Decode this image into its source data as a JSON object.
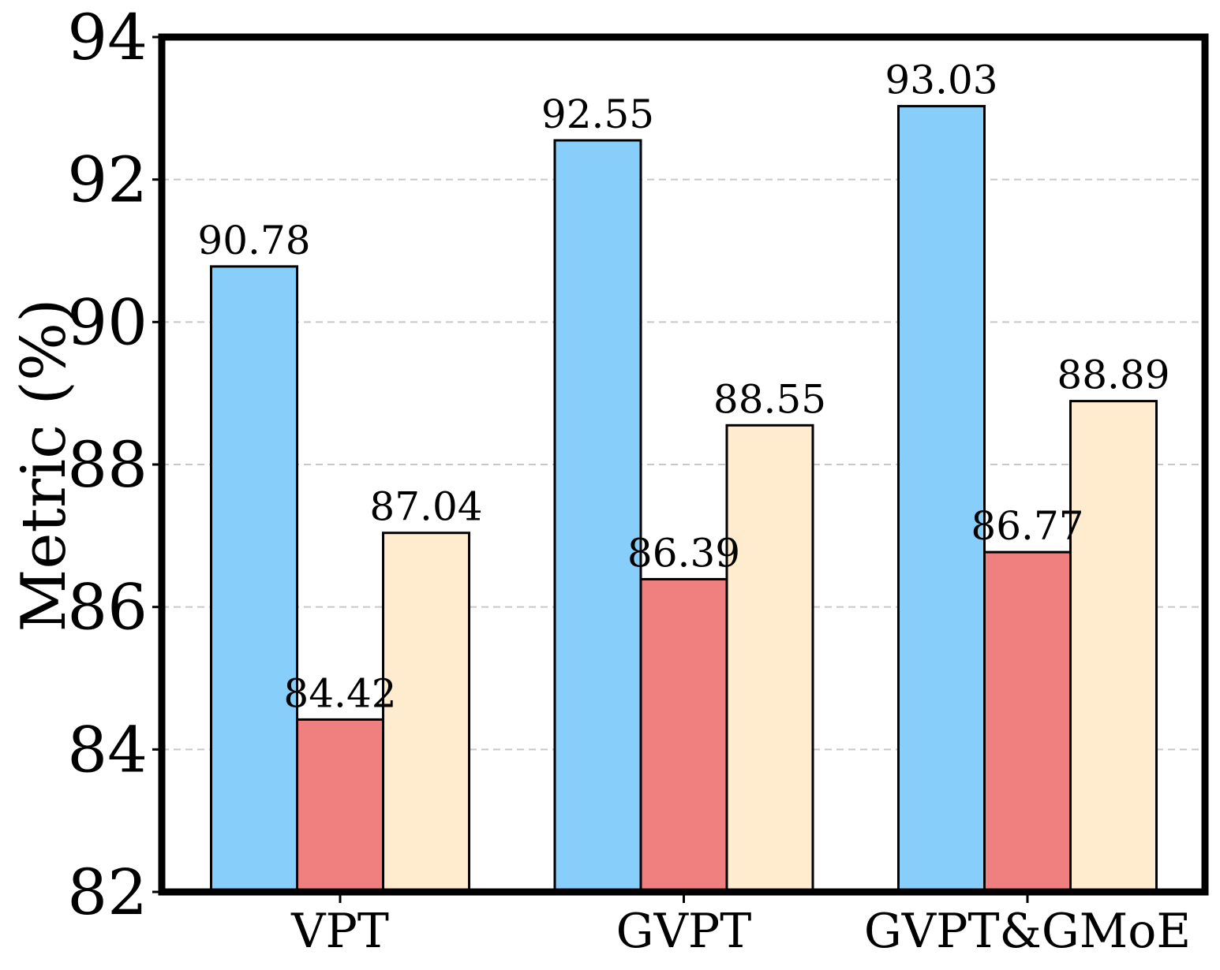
{
  "chart_data": {
    "type": "bar",
    "title": "",
    "xlabel": "",
    "ylabel": "Metric (%)",
    "ylim": [
      82,
      94
    ],
    "yticks": [
      82,
      84,
      86,
      88,
      90,
      92,
      94
    ],
    "grid": "y-dashed",
    "legend": "none",
    "categories": [
      "VPT",
      "GVPT",
      "GVPT&GMoE"
    ],
    "series": [
      {
        "color": "#87CEFA",
        "values": [
          90.78,
          92.55,
          93.03
        ]
      },
      {
        "color": "#F08080",
        "values": [
          84.42,
          86.39,
          86.77
        ]
      },
      {
        "color": "#FFEBCD",
        "values": [
          87.04,
          88.55,
          88.89
        ]
      }
    ],
    "value_labels": [
      [
        "90.78",
        "92.55",
        "93.03"
      ],
      [
        "84.42",
        "86.39",
        "86.77"
      ],
      [
        "87.04",
        "88.55",
        "88.89"
      ]
    ]
  }
}
